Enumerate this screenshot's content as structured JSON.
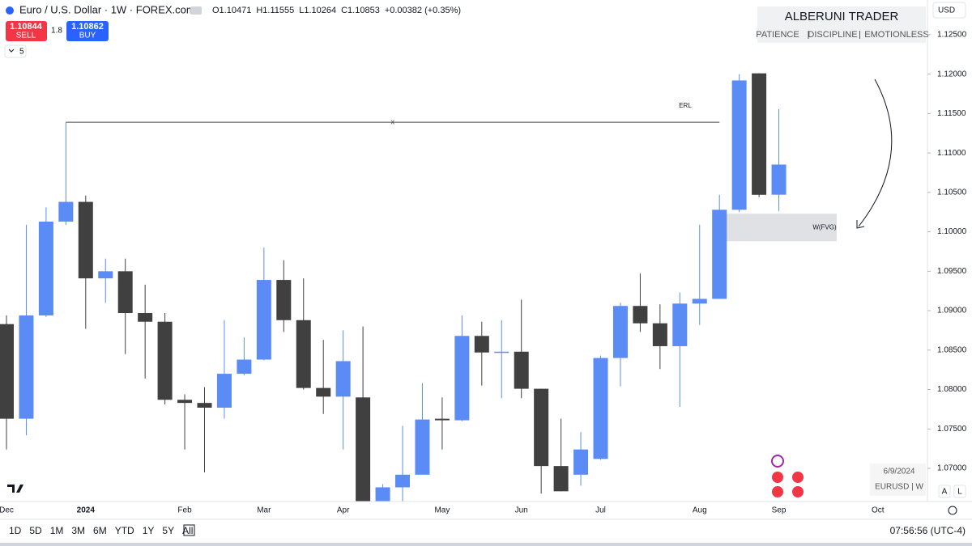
{
  "header": {
    "symbol": "Euro / U.S. Dollar · 1W · FOREX.com",
    "ohlc": [
      "O1.10471",
      "H1.11555",
      "L1.10264",
      "C1.10853",
      "+0.00382 (+0.35%)"
    ],
    "sell": {
      "price": "1.10844",
      "label": "SELL"
    },
    "spread": "1.8",
    "buy": {
      "price": "1.10862",
      "label": "BUY"
    },
    "indicators": "5",
    "currency": "USD"
  },
  "branding": {
    "title": "ALBERUNI TRADER",
    "tags": [
      "PATIENCE",
      "DISCIPLINE",
      "EMOTIONLESS"
    ]
  },
  "footer": {
    "date": "6/9/2024",
    "symbol": "EURUSD | W",
    "scale_buttons": [
      "A",
      "L"
    ],
    "ranges": [
      "1D",
      "5D",
      "1M",
      "3M",
      "6M",
      "YTD",
      "1Y",
      "5Y",
      "All"
    ],
    "clock": "07:56:56 (UTC-4)"
  },
  "chart_data": {
    "type": "candlestick",
    "categories": [
      "Dec",
      null,
      null,
      null,
      "2024",
      null,
      null,
      null,
      null,
      "Feb",
      null,
      null,
      null,
      "Mar",
      null,
      null,
      null,
      "Apr",
      null,
      null,
      null,
      null,
      "May",
      null,
      null,
      null,
      "Jun",
      null,
      null,
      null,
      "Jul",
      null,
      null,
      null,
      null,
      "Aug",
      null,
      null,
      null,
      "Sep",
      null,
      null,
      null,
      null,
      "Oct"
    ],
    "open": [
      1.0883,
      1.0763,
      1.0894,
      1.1013,
      1.1038,
      1.0941,
      1.095,
      1.0897,
      1.0886,
      1.0787,
      1.0783,
      1.0777,
      1.082,
      1.0838,
      1.0939,
      1.0888,
      1.0802,
      1.0791,
      1.079,
      1.0656,
      1.0676,
      1.0692,
      1.0763,
      1.0761,
      1.0868,
      1.0847,
      1.0848,
      1.0801,
      1.0703,
      1.0692,
      1.0712,
      1.084,
      1.0906,
      1.0884,
      1.0855,
      1.0909,
      1.0915,
      1.1028,
      1.1201,
      1.10471,
      null,
      null,
      null,
      null,
      null
    ],
    "high": [
      1.0894,
      1.1009,
      1.1031,
      1.1139,
      1.1046,
      1.0966,
      1.0966,
      1.0933,
      1.0897,
      1.0794,
      1.0803,
      1.0888,
      1.0866,
      1.098,
      1.0964,
      1.0941,
      1.0863,
      1.0875,
      1.088,
      1.068,
      1.0754,
      1.0808,
      1.079,
      1.0894,
      1.0886,
      1.0888,
      1.0914,
      1.0801,
      1.0763,
      1.0746,
      1.0843,
      1.091,
      1.0947,
      1.0908,
      1.0923,
      1.1009,
      1.1047,
      1.12,
      1.1201,
      1.11555,
      null,
      null,
      null,
      null,
      null
    ],
    "low": [
      1.0724,
      1.0742,
      1.0892,
      1.1009,
      1.0877,
      1.091,
      1.0845,
      1.0814,
      1.0781,
      1.0724,
      1.0695,
      1.0763,
      1.0818,
      1.0837,
      1.0873,
      1.08,
      1.0769,
      1.0724,
      1.065,
      1.065,
      1.065,
      1.0692,
      1.0724,
      1.076,
      1.0805,
      1.0789,
      1.0789,
      1.0668,
      1.0671,
      1.0678,
      1.0711,
      1.0804,
      1.0873,
      1.0826,
      1.0778,
      1.0882,
      1.0915,
      1.1025,
      1.1044,
      1.10264,
      null,
      null,
      null,
      null,
      null
    ],
    "close": [
      1.0763,
      1.0894,
      1.1013,
      1.1038,
      1.0941,
      1.095,
      1.0897,
      1.0886,
      1.0787,
      1.0783,
      1.0777,
      1.082,
      1.0838,
      1.0939,
      1.0888,
      1.0802,
      1.0791,
      1.0836,
      1.0656,
      1.0676,
      1.0692,
      1.0762,
      1.0761,
      1.0868,
      1.0847,
      1.0848,
      1.0801,
      1.0703,
      1.0671,
      1.0724,
      1.084,
      1.0906,
      1.0884,
      1.0855,
      1.0909,
      1.0915,
      1.1028,
      1.1192,
      1.1047,
      1.10853,
      null,
      null,
      null,
      null,
      null
    ],
    "up_color": "#5b8cf5",
    "down_color": "#404040",
    "ylim": [
      1.0658,
      1.1294
    ],
    "yticks": [
      {
        "value": 1.07,
        "label": "1.07000"
      },
      {
        "value": 1.075,
        "label": "1.07500"
      },
      {
        "value": 1.08,
        "label": "1.08000"
      },
      {
        "value": 1.085,
        "label": "1.08500"
      },
      {
        "value": 1.09,
        "label": "1.09000"
      },
      {
        "value": 1.095,
        "label": "1.09500"
      },
      {
        "value": 1.1,
        "label": "1.10000"
      },
      {
        "value": 1.105,
        "label": "1.10500"
      },
      {
        "value": 1.11,
        "label": "1.11000"
      },
      {
        "value": 1.115,
        "label": "1.11500"
      },
      {
        "value": 1.12,
        "label": "1.12000"
      },
      {
        "value": 1.125,
        "label": "1.12500"
      }
    ],
    "grid": false,
    "level": {
      "label": "ERL",
      "marker": "x",
      "value": 1.1139
    },
    "zone": {
      "label": "W(FVG)",
      "top": 1.1023,
      "bottom": 1.0988
    }
  }
}
